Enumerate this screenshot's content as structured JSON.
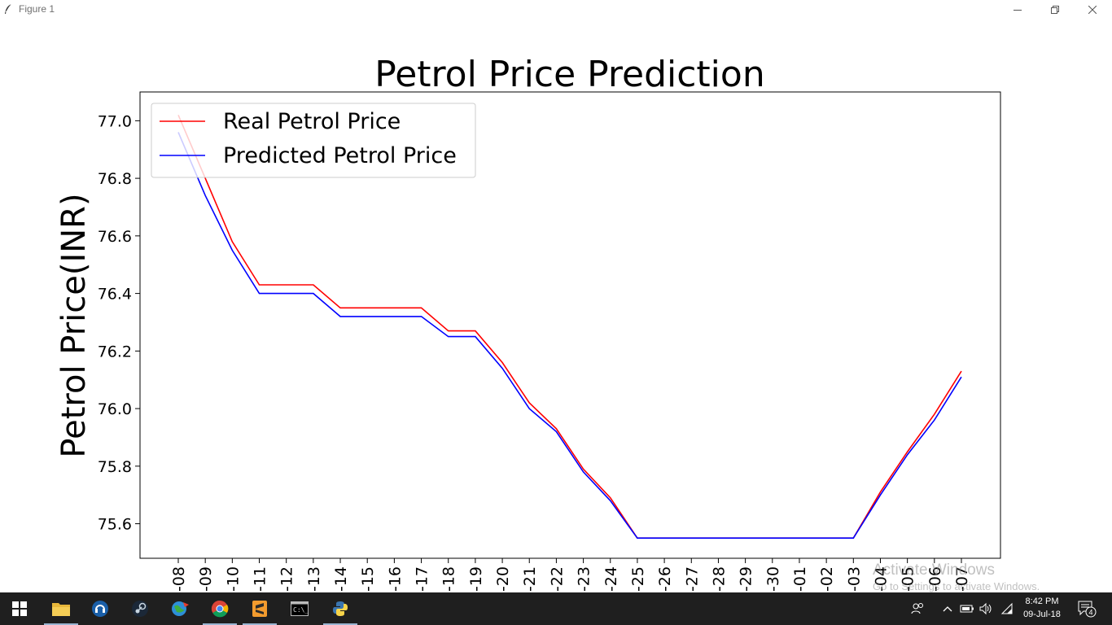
{
  "window": {
    "title": "Figure 1",
    "icon": "feather-icon",
    "controls": [
      "minimize-icon",
      "restore-icon",
      "close-icon"
    ]
  },
  "chart_data": {
    "type": "line",
    "title": "Petrol Price Prediction",
    "xlabel": "",
    "ylabel": "Petrol Price(INR)",
    "categories": [
      "-08",
      "-09",
      "-10",
      "-11",
      "-12",
      "-13",
      "-14",
      "-15",
      "-16",
      "-17",
      "-18",
      "-19",
      "-20",
      "-21",
      "-22",
      "-23",
      "-24",
      "-25",
      "-26",
      "-27",
      "-28",
      "-29",
      "-30",
      "-01",
      "-02",
      "-03",
      "-04",
      "-05",
      "-06",
      "-07"
    ],
    "yticks": [
      "75.6",
      "75.8",
      "76.0",
      "76.2",
      "76.4",
      "76.6",
      "76.8",
      "77.0"
    ],
    "ylim": [
      75.48,
      77.1
    ],
    "grid": false,
    "legend_position": "upper-left",
    "series": [
      {
        "name": "Real Petrol Price",
        "color": "#ff0000",
        "values": [
          77.02,
          76.8,
          76.58,
          76.43,
          76.43,
          76.43,
          76.35,
          76.35,
          76.35,
          76.35,
          76.27,
          76.27,
          76.16,
          76.02,
          75.93,
          75.79,
          75.69,
          75.55,
          75.55,
          75.55,
          75.55,
          75.55,
          75.55,
          75.55,
          75.55,
          75.55,
          75.71,
          75.85,
          75.98,
          76.13
        ]
      },
      {
        "name": "Predicted Petrol Price",
        "color": "#0000ff",
        "values": [
          76.96,
          76.74,
          76.55,
          76.4,
          76.4,
          76.4,
          76.32,
          76.32,
          76.32,
          76.32,
          76.25,
          76.25,
          76.14,
          76.0,
          75.92,
          75.78,
          75.68,
          75.55,
          75.55,
          75.55,
          75.55,
          75.55,
          75.55,
          75.55,
          75.55,
          75.55,
          75.7,
          75.84,
          75.96,
          76.11
        ]
      }
    ]
  },
  "watermark": {
    "title": "Activate Windows",
    "subtitle": "Go to Settings to activate Windows."
  },
  "taskbar": {
    "apps": [
      {
        "name": "start-button",
        "icon": "windows-logo-icon"
      },
      {
        "name": "file-explorer",
        "icon": "folder-icon"
      },
      {
        "name": "support-assistant",
        "icon": "headset-icon"
      },
      {
        "name": "steam",
        "icon": "steam-icon"
      },
      {
        "name": "browser-globe",
        "icon": "globe-icon"
      },
      {
        "name": "chrome",
        "icon": "chrome-icon"
      },
      {
        "name": "sublime-text",
        "icon": "sublime-icon"
      },
      {
        "name": "command-prompt",
        "icon": "terminal-icon"
      },
      {
        "name": "python",
        "icon": "python-icon"
      }
    ],
    "clock_time": "8:42 PM",
    "clock_date": "09-Jul-18",
    "notification_count": "4"
  }
}
